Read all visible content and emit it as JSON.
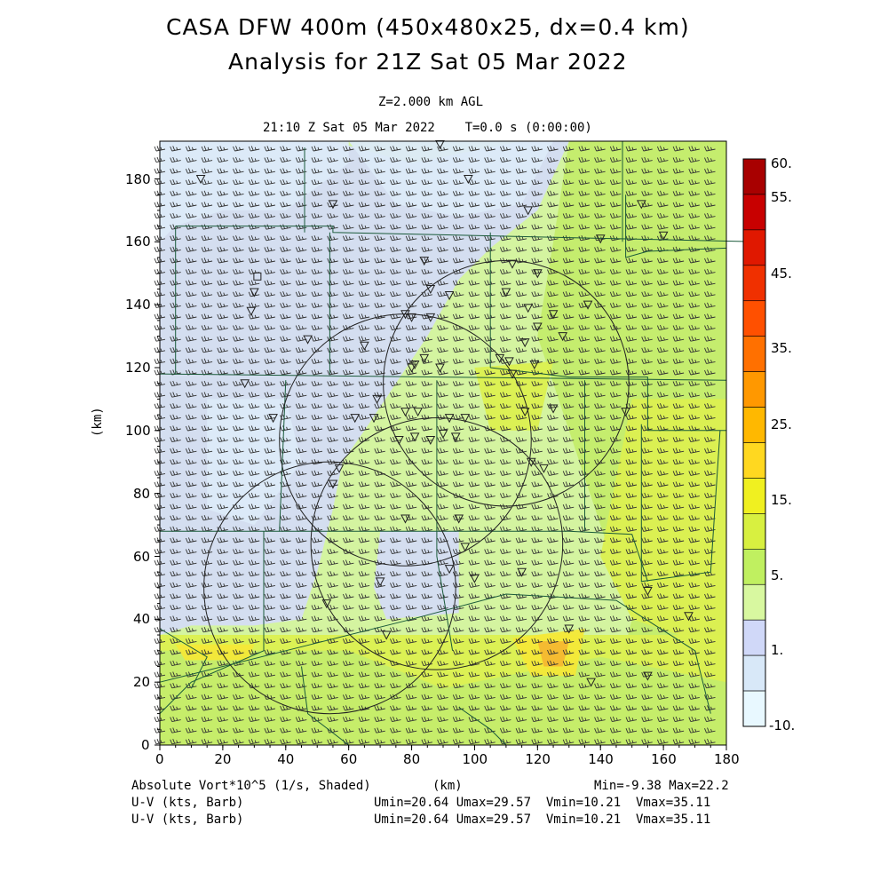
{
  "title_line1": "CASA DFW 400m (450x480x25, dx=0.4 km)",
  "title_line2": "Analysis for 21Z Sat 05 Mar 2022",
  "level_label": "Z=2.000 km AGL",
  "time_label": "21:10 Z Sat 05 Mar 2022    T=0.0 s (0:00:00)",
  "y_axis_label": "(km)",
  "x_axis_label": "(km)",
  "x_ticks": [
    "0",
    "20",
    "40",
    "60",
    "80",
    "100",
    "120",
    "140",
    "160",
    "180"
  ],
  "y_ticks": [
    "0",
    "20",
    "40",
    "60",
    "80",
    "100",
    "120",
    "140",
    "160",
    "180"
  ],
  "colorbar": {
    "labels": [
      "60.",
      "55.",
      "45.",
      "35.",
      "25.",
      "15.",
      "5.",
      "1.",
      "-10."
    ],
    "colors": [
      "#a80000",
      "#c80000",
      "#e01800",
      "#f03000",
      "#ff5000",
      "#ff7000",
      "#ff9800",
      "#ffb800",
      "#ffd820",
      "#f0f020",
      "#d8f040",
      "#c0f060",
      "#d8f8a0",
      "#d0d8f8",
      "#d8e8f8",
      "#e8f8ff"
    ]
  },
  "footer": {
    "field1": "Absolute Vort*10^5 (1/s, Shaded)",
    "field2": "U-V (kts, Barb)",
    "field3": "U-V (kts, Barb)",
    "xunit": "(km)",
    "minmax": "Min=-9.38 Max=22.2",
    "uv1": "Umin=20.64 Umax=29.57  Vmin=10.21  Vmax=35.11",
    "uv2": "Umin=20.64 Umax=29.57  Vmin=10.21  Vmax=35.11"
  },
  "field_colors": {
    "lightblue": "#d4dcf4",
    "paleblue": "#dceaf8",
    "lightgreen": "#d4f4a0",
    "green": "#c4ec6c",
    "yellowgreen": "#dcf050",
    "yellow": "#f4e838",
    "orange": "#f4b830"
  }
}
